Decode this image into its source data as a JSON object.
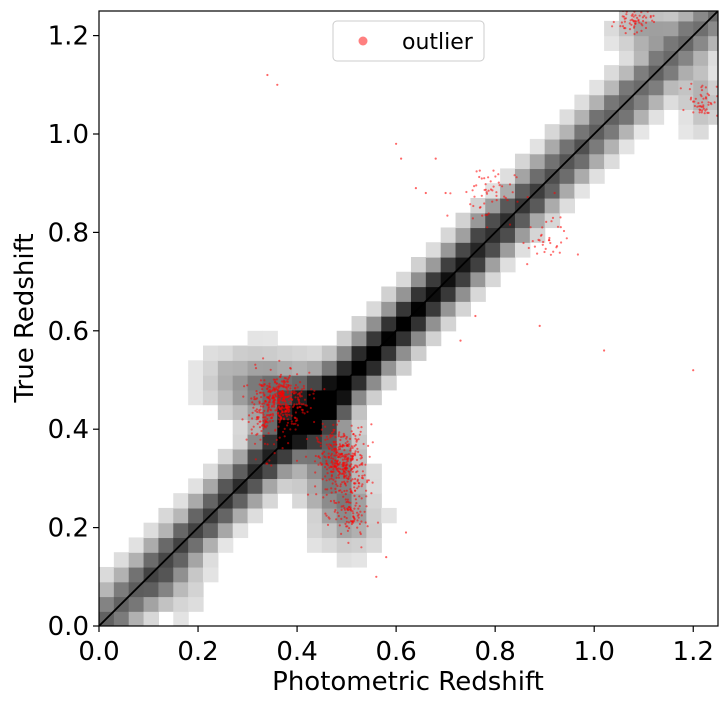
{
  "chart_data": {
    "type": "heatmap",
    "xlabel": "Photometric Redshift",
    "ylabel": "True Redshift",
    "xlim": [
      0.0,
      1.25
    ],
    "ylim": [
      0.0,
      1.25
    ],
    "xticks": [
      "0.0",
      "0.2",
      "0.4",
      "0.6",
      "0.8",
      "1.0",
      "1.2"
    ],
    "yticks": [
      "0.0",
      "0.2",
      "0.4",
      "0.6",
      "0.8",
      "1.0",
      "1.2"
    ],
    "bin_size": 0.03,
    "grid": false,
    "diagonal_line": true,
    "legend": {
      "placement": "top-center",
      "entries": [
        "outlier"
      ]
    },
    "series": [
      {
        "name": "outlier",
        "kind": "scatter",
        "color": "#ff0000"
      }
    ],
    "density_colormap": "greys",
    "outlier_clusters": [
      {
        "x": 0.37,
        "y": 0.46,
        "spread_x": 0.045,
        "spread_y": 0.045,
        "count": 320
      },
      {
        "x": 0.49,
        "y": 0.33,
        "spread_x": 0.04,
        "spread_y": 0.06,
        "count": 380
      },
      {
        "x": 0.34,
        "y": 0.43,
        "spread_x": 0.035,
        "spread_y": 0.07,
        "count": 120
      },
      {
        "x": 0.51,
        "y": 0.22,
        "spread_x": 0.03,
        "spread_y": 0.04,
        "count": 80
      },
      {
        "x": 1.08,
        "y": 1.23,
        "spread_x": 0.03,
        "spread_y": 0.02,
        "count": 60
      },
      {
        "x": 1.22,
        "y": 1.07,
        "spread_x": 0.025,
        "spread_y": 0.03,
        "count": 50
      },
      {
        "x": 0.78,
        "y": 0.88,
        "spread_x": 0.05,
        "spread_y": 0.05,
        "count": 55
      },
      {
        "x": 0.9,
        "y": 0.78,
        "spread_x": 0.04,
        "spread_y": 0.04,
        "count": 35
      }
    ],
    "isolated_outliers": [
      [
        0.34,
        1.12
      ],
      [
        0.36,
        1.1
      ],
      [
        0.6,
        0.98
      ],
      [
        0.61,
        0.95
      ],
      [
        0.68,
        0.95
      ],
      [
        0.64,
        0.89
      ],
      [
        0.66,
        0.88
      ],
      [
        0.7,
        0.88
      ],
      [
        0.92,
        0.88
      ],
      [
        0.55,
        0.41
      ],
      [
        1.02,
        0.56
      ],
      [
        1.2,
        0.52
      ],
      [
        0.89,
        0.61
      ],
      [
        0.76,
        0.63
      ],
      [
        0.42,
        0.38
      ],
      [
        0.56,
        0.1
      ],
      [
        0.58,
        0.14
      ],
      [
        0.62,
        0.19
      ],
      [
        0.55,
        0.27
      ],
      [
        0.73,
        0.58
      ]
    ]
  },
  "colors": {
    "outlier_point": "#ff0000",
    "legend_marker": "#ff8080",
    "diagonal": "#000000",
    "axis": "#000000"
  }
}
